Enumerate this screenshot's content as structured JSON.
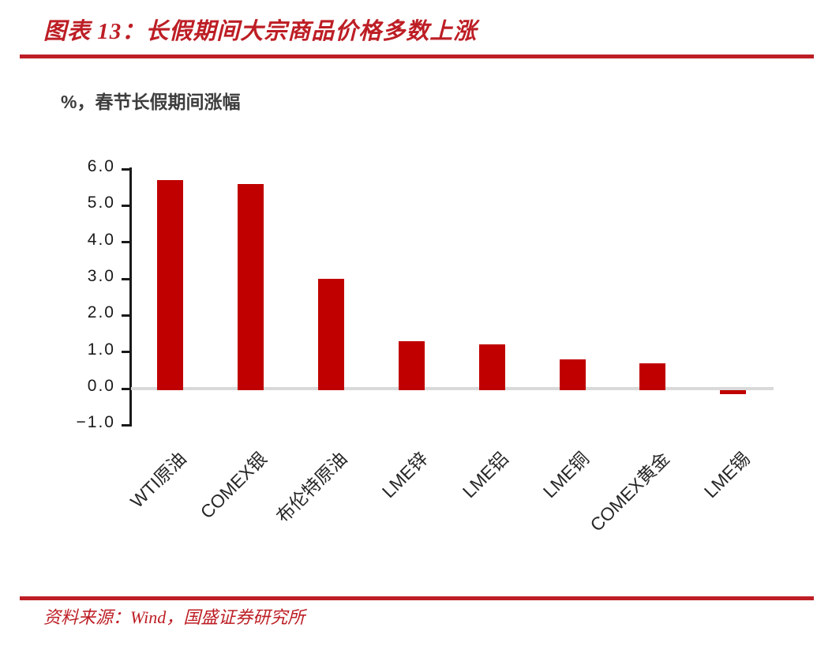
{
  "figure": {
    "title": "图表 13：长假期间大宗商品价格多数上涨",
    "source": "资料来源：Wind，国盛证券研究所"
  },
  "colors": {
    "accent_red": "#BD1E25",
    "bar_red": "#C00000",
    "zero_line_gray": "#D9D9D9",
    "axis_black": "#1a1a1a"
  },
  "chart_data": {
    "type": "bar",
    "title": "长假期间大宗商品价格多数上涨",
    "subtitle": "%，春节长假期间涨幅",
    "categories": [
      "WTI原油",
      "COMEX银",
      "布伦特原油",
      "LME锌",
      "LME铝",
      "LME铜",
      "COMEX黄金",
      "LME锡"
    ],
    "values": [
      5.7,
      5.6,
      3.0,
      1.3,
      1.2,
      0.8,
      0.7,
      -0.1
    ],
    "xlabel": "",
    "ylabel": "%",
    "ylim": [
      -1.0,
      6.0
    ],
    "y_ticks": [
      "6.0",
      "5.0",
      "4.0",
      "3.0",
      "2.0",
      "1.0",
      "0.0",
      "−1.0"
    ],
    "y_tick_values": [
      6,
      5,
      4,
      3,
      2,
      1,
      0,
      -1
    ],
    "grid": false,
    "legend": "none",
    "bar_color": "#C00000"
  }
}
